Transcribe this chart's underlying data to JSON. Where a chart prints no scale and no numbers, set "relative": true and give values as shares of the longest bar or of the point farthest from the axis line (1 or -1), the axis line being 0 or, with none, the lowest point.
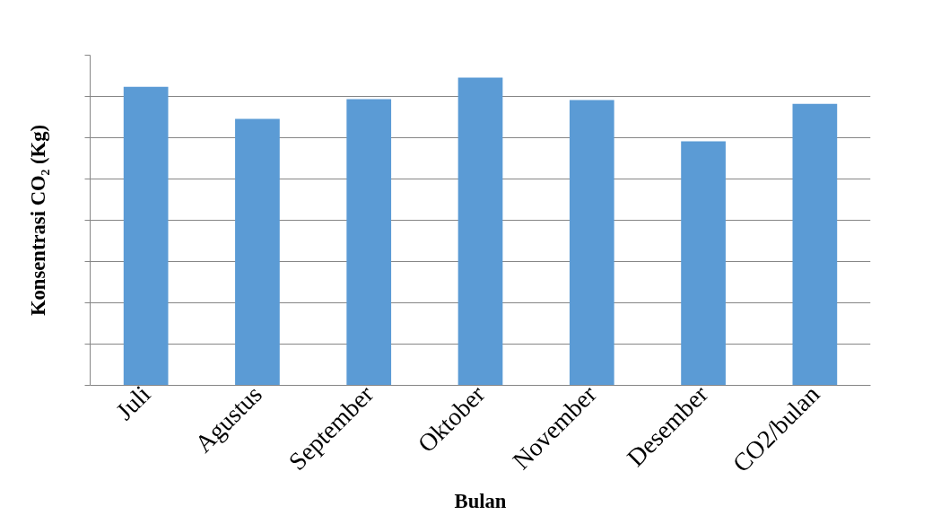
{
  "chart_data": {
    "type": "bar",
    "relative": true,
    "categories": [
      "Juli",
      "Agustus",
      "September",
      "Oktober",
      "November",
      "Desember",
      "CO2/bulan"
    ],
    "values": [
      0.97,
      0.866,
      0.93,
      1,
      0.927,
      0.793,
      0.915
    ],
    "color": "#5b9bd5",
    "xlabel": "Bulan",
    "ylabel": "Konsentrasi CO₂ (Kg)",
    "grid": "y"
  }
}
